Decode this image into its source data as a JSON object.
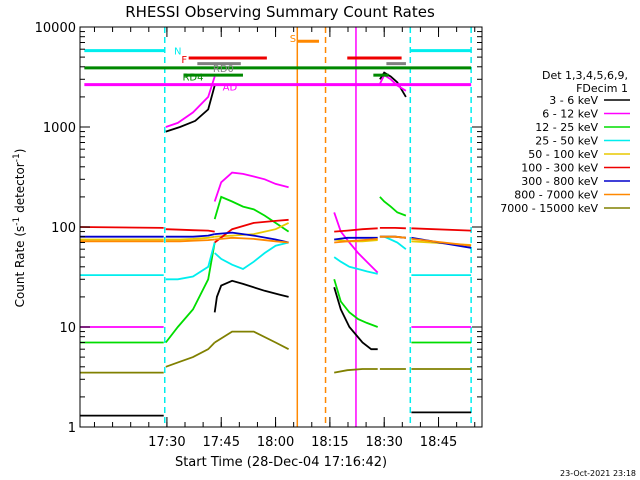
{
  "chart_data": {
    "type": "line",
    "title": "RHESSI Observing Summary Count Rates",
    "xlabel": "Start Time (28-Dec-04 17:16:42)",
    "ylabel_parts": [
      "Count Rate (s",
      "-1",
      " detector",
      "-1",
      ")"
    ],
    "footer": "23-Oct-2021 23:18",
    "yscale": "log",
    "ylim": [
      1,
      10000
    ],
    "xlim_min": [
      17.1,
      18.95
    ],
    "y_ticks": [
      {
        "value": 1,
        "label": "1"
      },
      {
        "value": 10,
        "label": "10"
      },
      {
        "value": 100,
        "label": "100"
      },
      {
        "value": 1000,
        "label": "1000"
      },
      {
        "value": 10000,
        "label": "10000"
      }
    ],
    "x_ticks": [
      {
        "value": 17.5,
        "label": "17:30"
      },
      {
        "value": 17.75,
        "label": "17:45"
      },
      {
        "value": 18.0,
        "label": "18:00"
      },
      {
        "value": 18.25,
        "label": "18:15"
      },
      {
        "value": 18.5,
        "label": "18:30"
      },
      {
        "value": 18.75,
        "label": "18:45"
      }
    ],
    "legend": {
      "header": [
        "Det 1,3,4,5,6,9,",
        "FDecim 1"
      ],
      "position": "right",
      "entries": [
        {
          "label": "3 - 6 keV",
          "color": "#000000"
        },
        {
          "label": "6 - 12 keV",
          "color": "#ff00ff"
        },
        {
          "label": "12 - 25 keV",
          "color": "#00dd00"
        },
        {
          "label": "25 - 50 keV",
          "color": "#00eeee"
        },
        {
          "label": "50 - 100 keV",
          "color": "#e8c800"
        },
        {
          "label": "100 - 300 keV",
          "color": "#ee0000"
        },
        {
          "label": "300 - 800 keV",
          "color": "#0000cc"
        },
        {
          "label": "800 - 7000 keV",
          "color": "#ff8800"
        },
        {
          "label": "7000 - 15000 keV",
          "color": "#808000"
        }
      ]
    },
    "flag_labels": [
      {
        "text": "N",
        "color": "#00eeee",
        "x": 17.55,
        "y": 5800
      },
      {
        "text": "F",
        "color": "#ee0000",
        "x": 17.58,
        "y": 4800
      },
      {
        "text": "RD0",
        "color": "#808080",
        "x": 17.76,
        "y": 3900
      },
      {
        "text": "RD4",
        "color": "#008800",
        "x": 17.62,
        "y": 3200
      },
      {
        "text": "AD",
        "color": "#ff00ff",
        "x": 17.79,
        "y": 2550
      },
      {
        "text": "S",
        "color": "#ff8800",
        "x": 18.08,
        "y": 7800
      }
    ],
    "flag_segments": [
      {
        "color": "#00eeee",
        "y": 5800,
        "ranges": [
          [
            17.12,
            17.49
          ],
          [
            18.62,
            18.9
          ]
        ]
      },
      {
        "color": "#ee0000",
        "y": 4900,
        "ranges": [
          [
            17.6,
            17.96
          ],
          [
            18.33,
            18.58
          ]
        ]
      },
      {
        "color": "#808080",
        "y": 4300,
        "ranges": [
          [
            17.64,
            17.84
          ],
          [
            18.51,
            18.6
          ]
        ]
      },
      {
        "color": "#008800",
        "y": 3900,
        "ranges": [
          [
            17.12,
            18.9
          ]
        ]
      },
      {
        "color": "#008800",
        "y": 3300,
        "ranges": [
          [
            17.58,
            17.85
          ],
          [
            18.45,
            18.52
          ]
        ]
      },
      {
        "color": "#ff00ff",
        "y": 2650,
        "ranges": [
          [
            17.12,
            18.9
          ]
        ]
      },
      {
        "color": "#ff8800",
        "y": 7200,
        "ranges": [
          [
            18.1,
            18.2
          ]
        ]
      }
    ],
    "vertical_lines": [
      {
        "color": "#ff8800",
        "x": 18.1,
        "dashed": false
      },
      {
        "color": "#ff8800",
        "x": 18.23,
        "dashed": true
      },
      {
        "color": "#00eeee",
        "x": 17.49,
        "dashed": true
      },
      {
        "color": "#00eeee",
        "x": 18.62,
        "dashed": true
      },
      {
        "color": "#00eeee",
        "x": 18.9,
        "dashed": true
      },
      {
        "color": "#ff00ff",
        "x": 18.37,
        "dashed": false
      }
    ],
    "series": [
      {
        "name": "3 - 6 keV",
        "color": "#000000",
        "segments": [
          {
            "x": [
              17.1,
              17.485
            ],
            "y": [
              1.3,
              1.3
            ]
          },
          {
            "x": [
              17.495,
              17.56,
              17.63,
              17.69,
              17.72
            ],
            "y": [
              900,
              1000,
              1150,
              1500,
              2600
            ]
          },
          {
            "x": [
              17.72,
              17.73,
              17.75,
              17.8,
              17.85,
              17.95,
              18.02,
              18.06
            ],
            "y": [
              14,
              20,
              26,
              29,
              27,
              23,
              21,
              20
            ]
          },
          {
            "x": [
              18.27,
              18.3,
              18.34,
              18.4,
              18.44,
              18.47
            ],
            "y": [
              25,
              15,
              10,
              7,
              6,
              6
            ]
          },
          {
            "x": [
              18.48,
              18.5,
              18.53,
              18.56,
              18.6
            ],
            "y": [
              3000,
              3500,
              3200,
              2800,
              2000
            ]
          },
          {
            "x": [
              18.625,
              18.9
            ],
            "y": [
              1.4,
              1.4
            ]
          }
        ]
      },
      {
        "name": "6 - 12 keV",
        "color": "#ff00ff",
        "segments": [
          {
            "x": [
              17.1,
              17.485
            ],
            "y": [
              10,
              10
            ]
          },
          {
            "x": [
              17.495,
              17.55,
              17.62,
              17.69,
              17.72
            ],
            "y": [
              1000,
              1100,
              1400,
              2000,
              3200
            ]
          },
          {
            "x": [
              17.72,
              17.75,
              17.8,
              17.85,
              17.9,
              17.95,
              18.0,
              18.06
            ],
            "y": [
              180,
              280,
              350,
              340,
              320,
              300,
              270,
              250
            ]
          },
          {
            "x": [
              18.27,
              18.3,
              18.34,
              18.38,
              18.42,
              18.47
            ],
            "y": [
              140,
              90,
              70,
              55,
              45,
              35
            ]
          },
          {
            "x": [
              18.48,
              18.5,
              18.53,
              18.56,
              18.6
            ],
            "y": [
              2700,
              3300,
              3000,
              2600,
              2300
            ]
          },
          {
            "x": [
              18.625,
              18.9
            ],
            "y": [
              10,
              10
            ]
          }
        ]
      },
      {
        "name": "12 - 25 keV",
        "color": "#00dd00",
        "segments": [
          {
            "x": [
              17.1,
              17.485
            ],
            "y": [
              7,
              7
            ]
          },
          {
            "x": [
              17.495,
              17.55,
              17.62,
              17.69,
              17.72
            ],
            "y": [
              7,
              10,
              15,
              30,
              70
            ]
          },
          {
            "x": [
              17.72,
              17.75,
              17.8,
              17.85,
              17.9,
              17.95,
              18.0,
              18.06
            ],
            "y": [
              120,
              200,
              180,
              160,
              150,
              130,
              110,
              90
            ]
          },
          {
            "x": [
              18.27,
              18.3,
              18.34,
              18.38,
              18.42,
              18.47
            ],
            "y": [
              30,
              18,
              14,
              12,
              11,
              10
            ]
          },
          {
            "x": [
              18.48,
              18.5,
              18.53,
              18.56,
              18.6
            ],
            "y": [
              200,
              180,
              160,
              140,
              130
            ]
          },
          {
            "x": [
              18.625,
              18.9
            ],
            "y": [
              7,
              7
            ]
          }
        ]
      },
      {
        "name": "25 - 50 keV",
        "color": "#00eeee",
        "segments": [
          {
            "x": [
              17.1,
              17.485
            ],
            "y": [
              33,
              33
            ]
          },
          {
            "x": [
              17.495,
              17.55,
              17.62,
              17.69,
              17.72
            ],
            "y": [
              30,
              30,
              32,
              40,
              70
            ]
          },
          {
            "x": [
              17.72,
              17.75,
              17.8,
              17.85,
              17.9,
              17.95,
              18.0,
              18.06
            ],
            "y": [
              55,
              48,
              42,
              38,
              45,
              55,
              65,
              70
            ]
          },
          {
            "x": [
              18.27,
              18.3,
              18.34,
              18.38,
              18.42,
              18.47
            ],
            "y": [
              50,
              45,
              40,
              38,
              36,
              34
            ]
          },
          {
            "x": [
              18.48,
              18.5,
              18.53,
              18.56,
              18.6
            ],
            "y": [
              80,
              80,
              75,
              70,
              60
            ]
          },
          {
            "x": [
              18.625,
              18.9
            ],
            "y": [
              33,
              33
            ]
          }
        ]
      },
      {
        "name": "50 - 100 keV",
        "color": "#e8c800",
        "segments": [
          {
            "x": [
              17.1,
              17.485
            ],
            "y": [
              75,
              75
            ]
          },
          {
            "x": [
              17.495,
              17.56,
              17.62,
              17.69,
              17.72
            ],
            "y": [
              75,
              75,
              76,
              78,
              80
            ]
          },
          {
            "x": [
              17.72,
              17.8,
              17.9,
              18.0,
              18.06
            ],
            "y": [
              80,
              82,
              85,
              95,
              110
            ]
          },
          {
            "x": [
              18.27,
              18.33,
              18.4,
              18.47
            ],
            "y": [
              75,
              72,
              72,
              74
            ]
          },
          {
            "x": [
              18.48,
              18.55,
              18.6
            ],
            "y": [
              80,
              80,
              78
            ]
          },
          {
            "x": [
              18.625,
              18.9
            ],
            "y": [
              72,
              66
            ]
          }
        ]
      },
      {
        "name": "100 - 300 keV",
        "color": "#ee0000",
        "segments": [
          {
            "x": [
              17.1,
              17.485
            ],
            "y": [
              100,
              98
            ]
          },
          {
            "x": [
              17.495,
              17.56,
              17.62,
              17.69,
              17.72
            ],
            "y": [
              95,
              94,
              93,
              92,
              90
            ]
          },
          {
            "x": [
              17.72,
              17.8,
              17.9,
              18.0,
              18.06
            ],
            "y": [
              70,
              95,
              110,
              115,
              118
            ]
          },
          {
            "x": [
              18.27,
              18.33,
              18.4,
              18.47
            ],
            "y": [
              90,
              92,
              95,
              97
            ]
          },
          {
            "x": [
              18.48,
              18.55,
              18.6
            ],
            "y": [
              98,
              98,
              97
            ]
          },
          {
            "x": [
              18.625,
              18.9
            ],
            "y": [
              97,
              92
            ]
          }
        ]
      },
      {
        "name": "300 - 800 keV",
        "color": "#0000cc",
        "segments": [
          {
            "x": [
              17.1,
              17.485
            ],
            "y": [
              80,
              80
            ]
          },
          {
            "x": [
              17.495,
              17.56,
              17.62,
              17.69,
              17.72
            ],
            "y": [
              80,
              80,
              80,
              82,
              85
            ]
          },
          {
            "x": [
              17.72,
              17.8,
              17.9,
              18.0,
              18.06
            ],
            "y": [
              85,
              88,
              82,
              75,
              70
            ]
          },
          {
            "x": [
              18.27,
              18.33,
              18.4,
              18.47
            ],
            "y": [
              75,
              78,
              78,
              78
            ]
          },
          {
            "x": [
              18.48,
              18.55,
              18.6
            ],
            "y": [
              80,
              80,
              78
            ]
          },
          {
            "x": [
              18.625,
              18.9
            ],
            "y": [
              78,
              62
            ]
          }
        ]
      },
      {
        "name": "800 - 7000 keV",
        "color": "#ff8800",
        "segments": [
          {
            "x": [
              17.1,
              17.485
            ],
            "y": [
              72,
              72
            ]
          },
          {
            "x": [
              17.495,
              17.56,
              17.62,
              17.69,
              17.72
            ],
            "y": [
              72,
              72,
              73,
              74,
              75
            ]
          },
          {
            "x": [
              17.72,
              17.8,
              17.9,
              18.0,
              18.06
            ],
            "y": [
              75,
              78,
              76,
              72,
              70
            ]
          },
          {
            "x": [
              18.27,
              18.33,
              18.4,
              18.47
            ],
            "y": [
              70,
              72,
              74,
              76
            ]
          },
          {
            "x": [
              18.48,
              18.55,
              18.6
            ],
            "y": [
              80,
              80,
              78
            ]
          },
          {
            "x": [
              18.625,
              18.9
            ],
            "y": [
              76,
              65
            ]
          }
        ]
      },
      {
        "name": "7000 - 15000 keV",
        "color": "#808000",
        "segments": [
          {
            "x": [
              17.1,
              17.485
            ],
            "y": [
              3.5,
              3.5
            ]
          },
          {
            "x": [
              17.495,
              17.56,
              17.62,
              17.69,
              17.72
            ],
            "y": [
              4,
              4.5,
              5,
              6,
              7
            ]
          },
          {
            "x": [
              17.72,
              17.8,
              17.9,
              18.0,
              18.06
            ],
            "y": [
              7,
              9,
              9,
              7,
              6
            ]
          },
          {
            "x": [
              18.27,
              18.33,
              18.4,
              18.47
            ],
            "y": [
              3.5,
              3.7,
              3.8,
              3.8
            ]
          },
          {
            "x": [
              18.48,
              18.55,
              18.6
            ],
            "y": [
              3.8,
              3.8,
              3.8
            ]
          },
          {
            "x": [
              18.625,
              18.9
            ],
            "y": [
              3.8,
              3.8
            ]
          }
        ]
      }
    ]
  }
}
